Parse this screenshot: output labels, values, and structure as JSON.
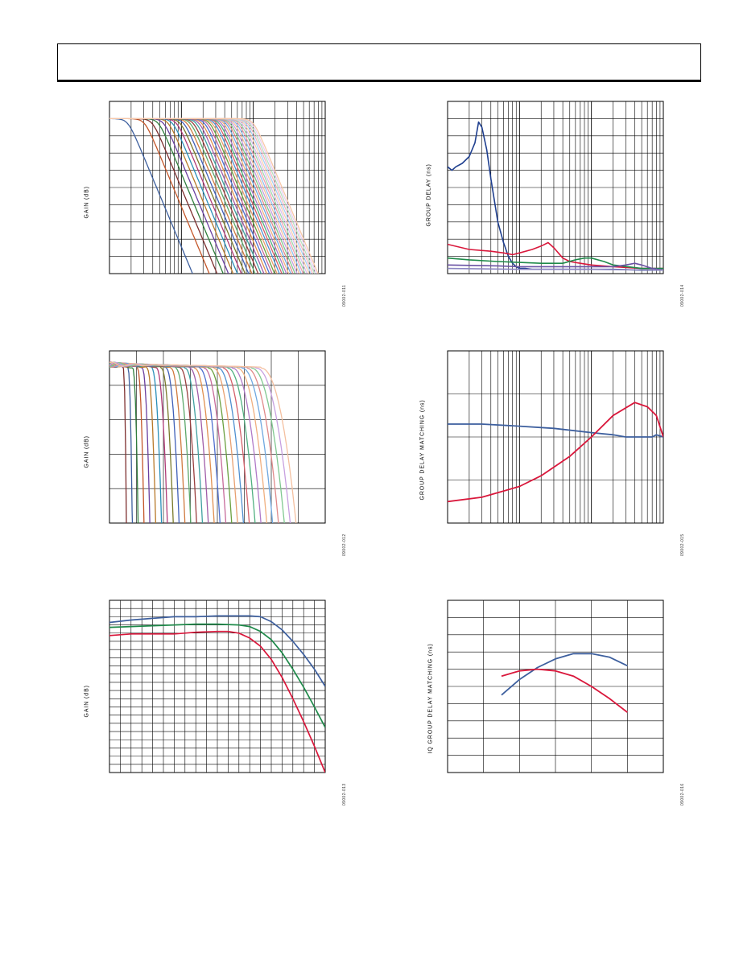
{
  "page": {
    "header": ""
  },
  "charts": [
    {
      "ylabel": "GAIN (dB)",
      "fignum": "09002-011"
    },
    {
      "ylabel": "GROUP DELAY (ns)",
      "fignum": "09002-014"
    },
    {
      "ylabel": "GAIN (dB)",
      "fignum": "09002-012"
    },
    {
      "ylabel": "GROUP DELAY MATCHING (ns)",
      "fignum": "09002-015"
    },
    {
      "ylabel": "GAIN (dB)",
      "fignum": "09002-013"
    },
    {
      "ylabel": "IQ GROUP DELAY MATCHING (ns)",
      "fignum": "09002-016"
    }
  ],
  "colors": {
    "blue": "#3d5f9e",
    "darkblue": "#1f3f8f",
    "red": "#d9173b",
    "green": "#1f8a4a",
    "purple": "#6a52a4",
    "lavender": "#8c86c2",
    "grid": "#000000"
  },
  "chart_data": [
    {
      "type": "line",
      "title": "",
      "xlabel": "",
      "ylabel": "GAIN (dB)",
      "x_scale": "log",
      "xlim": [
        1,
        1000
      ],
      "ylim": [
        -90,
        10
      ],
      "grid": true,
      "series_count": 40,
      "pattern": "lowpass family, flat near 0 dB then steep rolloff; corner frequency stepped in log steps",
      "corner_range": [
        1.8,
        100
      ],
      "series_colors": [
        "#3d5f9e",
        "#c4572a",
        "#7d2e2e",
        "#2f7e3c",
        "#6a3fa0",
        "#b8792a",
        "#2a8fb8",
        "#b03a77",
        "#7a7a2a",
        "#3f5fb8",
        "#d07a3f",
        "#5ca86a",
        "#9a3f3f",
        "#3fa0a0",
        "#a05ca8",
        "#e09050",
        "#4f6fcf",
        "#c76a9a",
        "#6aa03f",
        "#e8a070",
        "#5090d0",
        "#d4606a",
        "#50b080",
        "#b07ac8",
        "#f0b080",
        "#70a8e0",
        "#e08a8a",
        "#80c890",
        "#c8a0e0",
        "#f4c0a0",
        "#90c0f0",
        "#f0a0b0",
        "#a0d8b0",
        "#dcc0f0",
        "#f8d0b0",
        "#a8d0f4",
        "#f4b8c4",
        "#b8e0c0",
        "#e8d0f4",
        "#f8c8a8"
      ]
    },
    {
      "type": "line",
      "title": "",
      "xlabel": "",
      "ylabel": "GROUP DELAY (ns)",
      "x_scale": "log",
      "xlim": [
        1,
        1000
      ],
      "ylim": [
        0,
        100
      ],
      "grid": true,
      "series": [
        {
          "color": "#1f3f8f",
          "x": [
            1,
            1.15,
            1.3,
            1.6,
            2,
            2.4,
            2.7,
            3,
            3.5,
            4,
            5,
            6,
            7,
            8,
            9,
            10,
            12,
            15,
            20,
            30,
            50,
            100,
            200,
            500,
            1000
          ],
          "values": [
            62,
            60,
            62,
            64,
            68,
            76,
            88,
            85,
            72,
            55,
            30,
            18,
            10,
            6,
            4,
            3,
            3,
            2.5,
            2.5,
            2.5,
            2.5,
            2.5,
            2.5,
            2,
            2
          ]
        },
        {
          "color": "#d9173b",
          "x": [
            1,
            2,
            4,
            6,
            8,
            10,
            15,
            20,
            25,
            30,
            40,
            50,
            70,
            100,
            200,
            500,
            1000
          ],
          "values": [
            17,
            14,
            13,
            12,
            11,
            12,
            14,
            16,
            18,
            15,
            9,
            7,
            6,
            5,
            4,
            3,
            3
          ]
        },
        {
          "color": "#1f8a4a",
          "x": [
            1,
            2,
            5,
            10,
            20,
            40,
            60,
            80,
            100,
            150,
            200,
            500,
            1000
          ],
          "values": [
            9,
            8,
            7,
            6.5,
            6,
            6,
            8,
            9,
            9,
            7,
            5,
            3,
            3
          ]
        },
        {
          "color": "#6a52a4",
          "x": [
            1,
            5,
            10,
            50,
            100,
            200,
            300,
            400,
            500,
            700,
            1000
          ],
          "values": [
            5,
            4.5,
            4,
            4,
            4,
            4,
            5,
            6,
            5,
            3,
            2
          ]
        },
        {
          "color": "#8c86c2",
          "x": [
            1,
            10,
            100,
            1000
          ],
          "values": [
            3,
            2.5,
            2.5,
            2
          ]
        }
      ]
    },
    {
      "type": "line",
      "title": "",
      "xlabel": "",
      "ylabel": "GAIN (dB)",
      "x_scale": "linear",
      "xlim": [
        0,
        8
      ],
      "ylim": [
        -5,
        0
      ],
      "grid": true,
      "series_count": 30,
      "pattern": "family of flat passband curves with ripple, each dropping sharply at its corner",
      "corner_range": [
        0.6,
        6.6
      ],
      "series_colors": [
        "#7d2e2e",
        "#3d5f9e",
        "#2f7e3c",
        "#c4572a",
        "#6a3fa0",
        "#b8792a",
        "#2a8fb8",
        "#b03a77",
        "#7a7a2a",
        "#3f5fb8",
        "#d07a3f",
        "#5ca86a",
        "#9a3f3f",
        "#3fa0a0",
        "#a05ca8",
        "#e09050",
        "#4f6fcf",
        "#c76a9a",
        "#6aa03f",
        "#e8a070",
        "#5090d0",
        "#d4606a",
        "#50b080",
        "#b07ac8",
        "#f0b080",
        "#70a8e0",
        "#e08a8a",
        "#80c890",
        "#c8a0e0",
        "#f4c0a0"
      ]
    },
    {
      "type": "line",
      "title": "",
      "xlabel": "",
      "ylabel": "GROUP DELAY MATCHING (ns)",
      "x_scale": "log",
      "xlim": [
        1,
        1000
      ],
      "ylim": [
        0,
        4
      ],
      "grid": true,
      "series": [
        {
          "color": "#3d5f9e",
          "x": [
            1,
            3,
            10,
            30,
            100,
            200,
            300,
            500,
            700,
            800,
            1000
          ],
          "values": [
            2.3,
            2.3,
            2.25,
            2.2,
            2.1,
            2.05,
            2.0,
            2.0,
            2.0,
            2.05,
            2.0
          ]
        },
        {
          "color": "#d9173b",
          "x": [
            1,
            3,
            10,
            20,
            50,
            100,
            200,
            400,
            600,
            800,
            1000
          ],
          "values": [
            0.5,
            0.6,
            0.85,
            1.1,
            1.55,
            2.0,
            2.5,
            2.8,
            2.7,
            2.5,
            2.0
          ]
        }
      ]
    },
    {
      "type": "line",
      "title": "",
      "xlabel": "",
      "ylabel": "GAIN (dB)",
      "x_scale": "linear",
      "xlim": [
        0,
        10
      ],
      "ylim": [
        -20,
        1
      ],
      "grid": true,
      "series": [
        {
          "color": "#3d5f9e",
          "x": [
            0,
            1,
            2,
            3,
            4,
            5,
            6,
            6.5,
            7,
            7.5,
            8,
            8.5,
            9,
            9.5,
            10
          ],
          "values": [
            -1.7,
            -1.4,
            -1.2,
            -1.0,
            -1.0,
            -0.9,
            -0.9,
            -0.9,
            -1.0,
            -1.6,
            -2.6,
            -4.0,
            -5.6,
            -7.4,
            -9.5
          ]
        },
        {
          "color": "#1f8a4a",
          "x": [
            0,
            1,
            2,
            3,
            4,
            5,
            6,
            6.5,
            7,
            7.5,
            8,
            8.5,
            9,
            9.5,
            10
          ],
          "values": [
            -2.3,
            -2.2,
            -2.1,
            -2.0,
            -1.9,
            -1.9,
            -2.0,
            -2.2,
            -2.8,
            -3.8,
            -5.4,
            -7.4,
            -9.6,
            -12.0,
            -14.5
          ]
        },
        {
          "color": "#d9173b",
          "x": [
            0,
            1,
            2,
            3,
            4,
            5,
            5.5,
            6,
            6.5,
            7,
            7.5,
            8,
            8.5,
            9,
            9.5,
            10
          ],
          "values": [
            -3.3,
            -3.1,
            -3.1,
            -3.1,
            -2.9,
            -2.8,
            -2.8,
            -3.0,
            -3.6,
            -4.6,
            -6.2,
            -8.4,
            -11.0,
            -13.8,
            -16.8,
            -20.0
          ]
        }
      ]
    },
    {
      "type": "line",
      "title": "",
      "xlabel": "",
      "ylabel": "IQ GROUP DELAY MATCHING (ns)",
      "x_scale": "linear",
      "xlim": [
        0,
        6
      ],
      "ylim": [
        0,
        10
      ],
      "grid": true,
      "series": [
        {
          "color": "#3d5f9e",
          "x": [
            1.5,
            2,
            2.5,
            3,
            3.5,
            4,
            4.5,
            5
          ],
          "values": [
            4.5,
            5.4,
            6.1,
            6.6,
            6.9,
            6.9,
            6.7,
            6.2
          ]
        },
        {
          "color": "#d9173b",
          "x": [
            1.5,
            2,
            2.5,
            3,
            3.5,
            4,
            4.5,
            5
          ],
          "values": [
            5.6,
            5.9,
            6.0,
            5.9,
            5.6,
            5.0,
            4.3,
            3.5
          ]
        }
      ]
    }
  ]
}
